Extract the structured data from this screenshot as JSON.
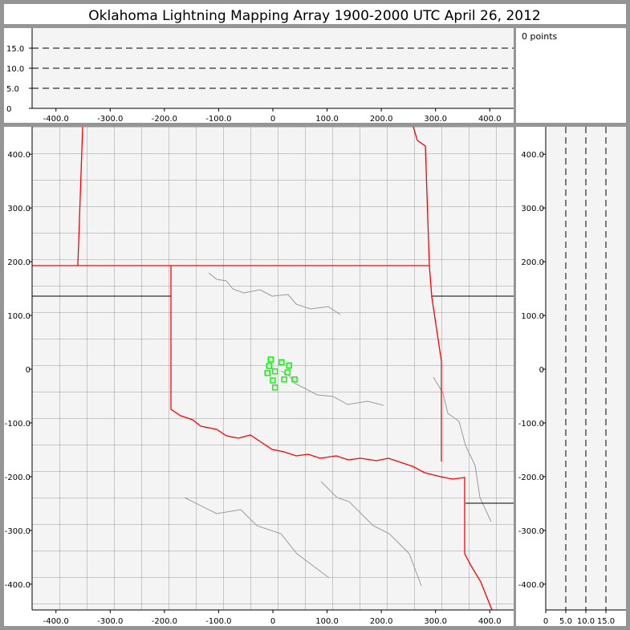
{
  "title": "Oklahoma Lightning Mapping Array   1900-2000 UTC  April 26, 2012",
  "points_label": "0 points",
  "colors": {
    "frame": "#959595",
    "plot_bg": "#f4f4f4",
    "county": "#9a9a9a",
    "state_border": "#ff0000",
    "source": "#00ff00"
  },
  "chart_data": [
    {
      "type": "line",
      "panel": "altitude-vs-east-west",
      "xlim": [
        -444,
        444
      ],
      "ylim": [
        0,
        20
      ],
      "x_ticks": [
        "-400.0",
        "-300.0",
        "-200.0",
        "-100.0",
        "0",
        "100.0",
        "200.0",
        "300.0",
        "400.0"
      ],
      "x_tick_values": [
        -400,
        -300,
        -200,
        -100,
        0,
        100,
        200,
        300,
        400
      ],
      "y_ticks": [
        "0",
        "5.0",
        "10.0",
        "15.0"
      ],
      "y_tick_values": [
        0,
        5,
        10,
        15
      ],
      "dashed_reference_lines": [
        5,
        10,
        15
      ]
    },
    {
      "type": "scatter",
      "panel": "plan-view-map",
      "xlim": [
        -444,
        444
      ],
      "ylim": [
        -448,
        451
      ],
      "x_ticks": [
        "-400.0",
        "-300.0",
        "-200.0",
        "-100.0",
        "0",
        "100.0",
        "200.0",
        "300.0",
        "400.0"
      ],
      "x_tick_values": [
        -400,
        -300,
        -200,
        -100,
        0,
        100,
        200,
        300,
        400
      ],
      "y_ticks": [
        "400.0",
        "300.0",
        "200.0",
        "100.0",
        "0",
        "-100.0",
        "-200.0",
        "-300.0",
        "-400.0"
      ],
      "y_tick_values": [
        400,
        300,
        200,
        100,
        0,
        -100,
        -200,
        -300,
        -400
      ],
      "points": [
        [
          -4,
          18
        ],
        [
          -7,
          6
        ],
        [
          16,
          13
        ],
        [
          30,
          7
        ],
        [
          -10,
          -7
        ],
        [
          4,
          -4
        ],
        [
          27,
          -6
        ],
        [
          0,
          -21
        ],
        [
          21,
          -19
        ],
        [
          40,
          -19
        ],
        [
          4,
          -34
        ]
      ],
      "marker": "hollow-square"
    },
    {
      "type": "line",
      "panel": "north-south-vs-altitude",
      "xlim": [
        0,
        20
      ],
      "ylim": [
        -448,
        451
      ],
      "x_ticks": [
        "0",
        "5.0",
        "10.0",
        "15.0"
      ],
      "x_tick_values": [
        0,
        5,
        10,
        15
      ],
      "y_ticks": [
        "400.0",
        "300.0",
        "200.0",
        "100.0",
        "0",
        "-100.0",
        "-200.0",
        "-300.0",
        "-400.0"
      ],
      "y_tick_values": [
        400,
        300,
        200,
        100,
        0,
        -100,
        -200,
        -300,
        -400
      ],
      "dashed_reference_lines": [
        5,
        10,
        15
      ]
    }
  ]
}
